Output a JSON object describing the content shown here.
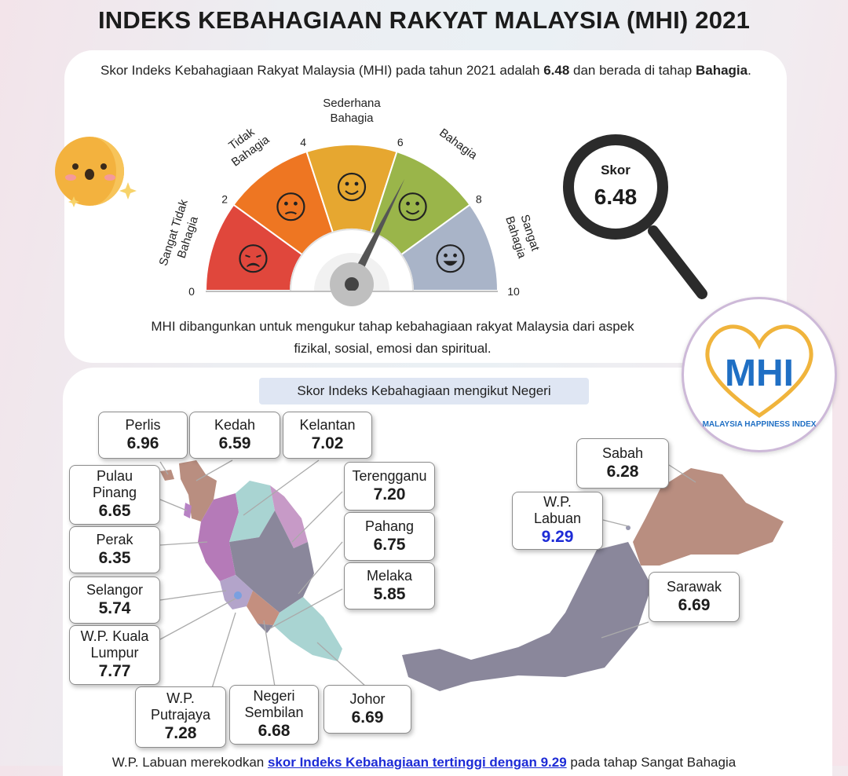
{
  "header": {
    "title": "INDEKS KEBAHAGIAAN RAKYAT MALAYSIA (MHI) 2021"
  },
  "intro": {
    "pre": "Skor Indeks Kebahagiaan Rakyat Malaysia (MHI) pada tahun 2021 adalah ",
    "score": "6.48",
    "mid": " dan berada di tahap ",
    "level": "Bahagia",
    "post": "."
  },
  "gauge": {
    "categories": [
      {
        "label_line1": "Sangat Tidak",
        "label_line2": "Bahagia",
        "color": "#e0473c",
        "face": "sad-face"
      },
      {
        "label_line1": "Tidak",
        "label_line2": "Bahagia",
        "color": "#ee7622",
        "face": "worried-face"
      },
      {
        "label_line1": "Sederhana",
        "label_line2": "Bahagia",
        "color": "#e6a730",
        "face": "neutral-smile-face"
      },
      {
        "label_line1": "Bahagia",
        "label_line2": "",
        "color": "#9ab54a",
        "face": "smile-face"
      },
      {
        "label_line1": "Sangat",
        "label_line2": "Bahagia",
        "color": "#a9b4c8",
        "face": "grin-face"
      }
    ],
    "ticks": [
      "0",
      "2",
      "4",
      "6",
      "8",
      "10"
    ],
    "value": 6.48,
    "max": 10
  },
  "score_badge": {
    "label": "Skor",
    "value": "6.48"
  },
  "description": {
    "line1": "MHI dibangunkan untuk mengukur tahap kebahagiaan rakyat Malaysia dari aspek",
    "line2": "fizikal, sosial, emosi dan spiritual."
  },
  "logo": {
    "text": "MHI",
    "caption": "MALAYSIA HAPPINESS INDEX"
  },
  "map_section": {
    "subtitle": "Skor Indeks Kebahagiaan mengikut Negeri"
  },
  "states": {
    "perlis": {
      "name": "Perlis",
      "value": "6.96"
    },
    "kedah": {
      "name": "Kedah",
      "value": "6.59"
    },
    "kelantan": {
      "name": "Kelantan",
      "value": "7.02"
    },
    "pulau_pinang": {
      "name1": "Pulau",
      "name2": "Pinang",
      "value": "6.65"
    },
    "terengganu": {
      "name": "Terengganu",
      "value": "7.20"
    },
    "perak": {
      "name": "Perak",
      "value": "6.35"
    },
    "pahang": {
      "name": "Pahang",
      "value": "6.75"
    },
    "melaka": {
      "name": "Melaka",
      "value": "5.85"
    },
    "selangor": {
      "name": "Selangor",
      "value": "5.74"
    },
    "kuala_lumpur": {
      "name1": "W.P. Kuala",
      "name2": "Lumpur",
      "value": "7.77"
    },
    "putrajaya": {
      "name1": "W.P.",
      "name2": "Putrajaya",
      "value": "7.28"
    },
    "negeri_sembilan": {
      "name1": "Negeri",
      "name2": "Sembilan",
      "value": "6.68"
    },
    "johor": {
      "name": "Johor",
      "value": "6.69"
    },
    "sabah": {
      "name": "Sabah",
      "value": "6.28"
    },
    "labuan": {
      "name1": "W.P.",
      "name2": "Labuan",
      "value": "9.29"
    },
    "sarawak": {
      "name": "Sarawak",
      "value": "6.69"
    }
  },
  "footer": {
    "pre": "W.P. Labuan merekodkan ",
    "emphasis": "skor Indeks Kebahagiaan tertinggi dengan 9.29",
    "post": " pada tahap Sangat Bahagia"
  },
  "colors": {
    "gauge_needle": "#555555",
    "labuan_highlight": "#1d2bd6",
    "logo_blue": "#1f6fc4",
    "logo_gold": "#f0b43c"
  }
}
